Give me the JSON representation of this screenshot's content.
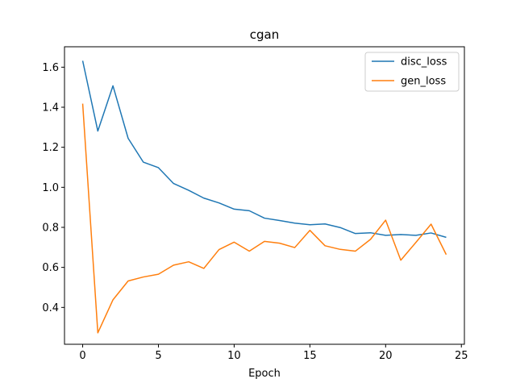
{
  "chart_data": {
    "type": "line",
    "title": "cgan",
    "xlabel": "Epoch",
    "ylabel": "",
    "xlim": [
      -1.2,
      25.2
    ],
    "ylim": [
      0.216,
      1.702
    ],
    "xticks": [
      0,
      5,
      10,
      15,
      20,
      25
    ],
    "yticks": [
      0.4,
      0.6,
      0.8,
      1.0,
      1.2,
      1.4,
      1.6
    ],
    "ytick_labels": [
      "0.4",
      "0.6",
      "0.8",
      "1.0",
      "1.2",
      "1.4",
      "1.6"
    ],
    "grid": false,
    "legend_position": "top-right",
    "x": [
      0,
      1,
      2,
      3,
      4,
      5,
      6,
      7,
      8,
      9,
      10,
      11,
      12,
      13,
      14,
      15,
      16,
      17,
      18,
      19,
      20,
      21,
      22,
      23,
      24
    ],
    "series": [
      {
        "name": "disc_loss",
        "color": "#1f77b4",
        "values": [
          1.632,
          1.281,
          1.507,
          1.245,
          1.126,
          1.098,
          1.019,
          0.985,
          0.946,
          0.922,
          0.891,
          0.883,
          0.846,
          0.834,
          0.821,
          0.813,
          0.817,
          0.799,
          0.769,
          0.773,
          0.76,
          0.764,
          0.76,
          0.772,
          0.75
        ]
      },
      {
        "name": "gen_loss",
        "color": "#ff7f0e",
        "values": [
          1.418,
          0.273,
          0.438,
          0.532,
          0.552,
          0.566,
          0.611,
          0.628,
          0.595,
          0.689,
          0.726,
          0.681,
          0.73,
          0.721,
          0.699,
          0.785,
          0.708,
          0.69,
          0.681,
          0.74,
          0.836,
          0.636,
          0.725,
          0.816,
          0.664
        ]
      }
    ]
  }
}
